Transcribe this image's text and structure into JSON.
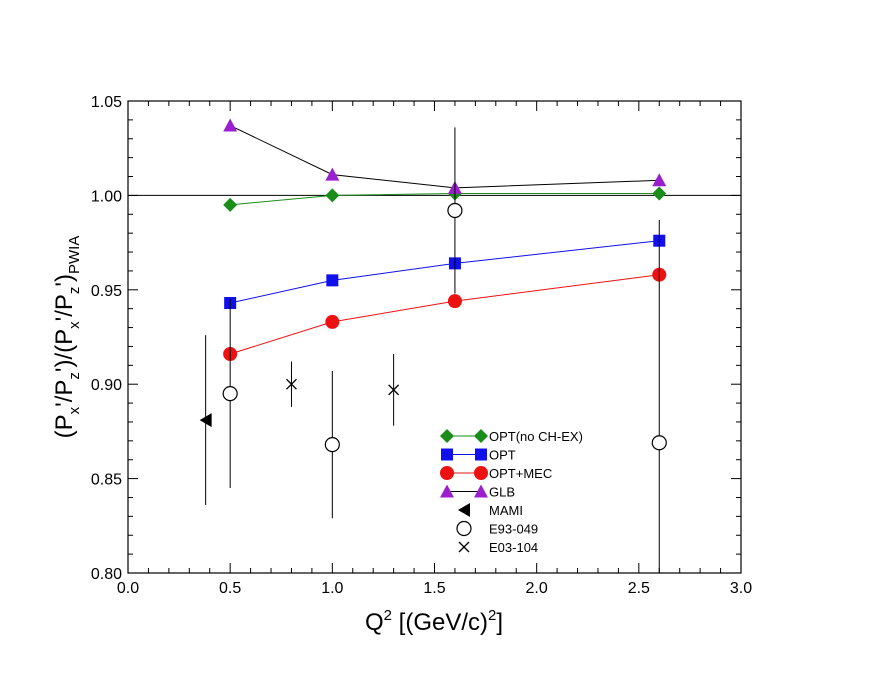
{
  "chart_data": {
    "type": "scatter",
    "title": "",
    "xlabel": {
      "main": "Q",
      "sup": "2",
      "unit": " [(GeV/c)",
      "unit_sup": "2",
      "close": "]"
    },
    "ylabel": {
      "p1": "(P",
      "s1": "x",
      "p2": "'/P",
      "s2": "z",
      "p3": "')/(P",
      "s3": "x",
      "p4": "'/P",
      "s4": "z",
      "p5": "')",
      "s5": "PWIA"
    },
    "xlim": [
      0.0,
      3.0
    ],
    "ylim": [
      0.8,
      1.05
    ],
    "x_ticks": [
      "0.0",
      "0.5",
      "1.0",
      "1.5",
      "2.0",
      "2.5",
      "3.0"
    ],
    "y_ticks": [
      "0.80",
      "0.85",
      "0.90",
      "0.95",
      "1.00",
      "1.05"
    ],
    "reference_line": 1.0,
    "legend_position": "lower-right",
    "series": [
      {
        "name": "OPT(no CH-EX)",
        "marker": "diamond",
        "color": "#1a8c1a",
        "connected": true,
        "x": [
          0.5,
          1.0,
          1.6,
          2.6
        ],
        "y": [
          0.995,
          1.0,
          1.001,
          1.001
        ]
      },
      {
        "name": "OPT",
        "marker": "square",
        "color": "#1010ee",
        "connected": true,
        "x": [
          0.5,
          1.0,
          1.6,
          2.6
        ],
        "y": [
          0.943,
          0.955,
          0.964,
          0.976
        ]
      },
      {
        "name": "OPT+MEC",
        "marker": "circle",
        "color": "#ee1111",
        "connected": true,
        "x": [
          0.5,
          1.0,
          1.6,
          2.6
        ],
        "y": [
          0.916,
          0.933,
          0.944,
          0.958
        ]
      },
      {
        "name": "GLB",
        "marker": "triangle",
        "color": "#9b1fcf",
        "connected": true,
        "line_color": "#000000",
        "x": [
          0.5,
          1.0,
          1.6,
          2.6
        ],
        "y": [
          1.037,
          1.011,
          1.004,
          1.008
        ]
      },
      {
        "name": "MAMI",
        "marker": "triangle-left",
        "color": "#000000",
        "connected": false,
        "x": [
          0.38
        ],
        "y": [
          0.881
        ],
        "err": [
          0.045
        ]
      },
      {
        "name": "E93-049",
        "marker": "open-circle",
        "color": "#000000",
        "connected": false,
        "x": [
          0.5,
          1.0,
          1.6,
          2.6
        ],
        "y": [
          0.895,
          0.868,
          0.992,
          0.869
        ],
        "err": [
          0.05,
          0.039,
          0.044,
          0.118
        ]
      },
      {
        "name": "E03-104",
        "marker": "cross",
        "color": "#000000",
        "connected": false,
        "x": [
          0.8,
          1.3
        ],
        "y": [
          0.9,
          0.897
        ],
        "err": [
          0.012,
          0.019
        ]
      }
    ]
  }
}
